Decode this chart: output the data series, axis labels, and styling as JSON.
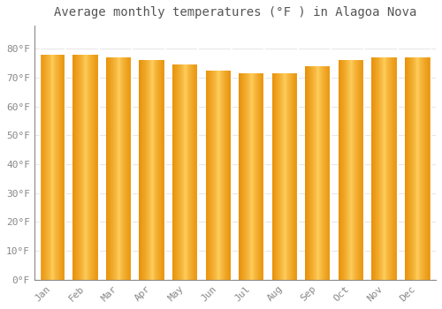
{
  "title": "Average monthly temperatures (°F ) in Alagoa Nova",
  "months": [
    "Jan",
    "Feb",
    "Mar",
    "Apr",
    "May",
    "Jun",
    "Jul",
    "Aug",
    "Sep",
    "Oct",
    "Nov",
    "Dec"
  ],
  "values": [
    78.0,
    78.0,
    77.0,
    76.0,
    74.5,
    72.5,
    71.5,
    71.5,
    74.0,
    76.0,
    77.0,
    77.0
  ],
  "ylim": [
    0,
    88
  ],
  "yticks": [
    0,
    10,
    20,
    30,
    40,
    50,
    60,
    70,
    80
  ],
  "ytick_labels": [
    "0°F",
    "10°F",
    "20°F",
    "30°F",
    "40°F",
    "50°F",
    "60°F",
    "70°F",
    "80°F"
  ],
  "background_color": "#ffffff",
  "grid_color": "#e8e8e8",
  "title_fontsize": 10,
  "tick_fontsize": 8,
  "bar_color_edge": "#E8920A",
  "bar_color_center": "#FFD060",
  "bar_gap_color": "#ffffff"
}
